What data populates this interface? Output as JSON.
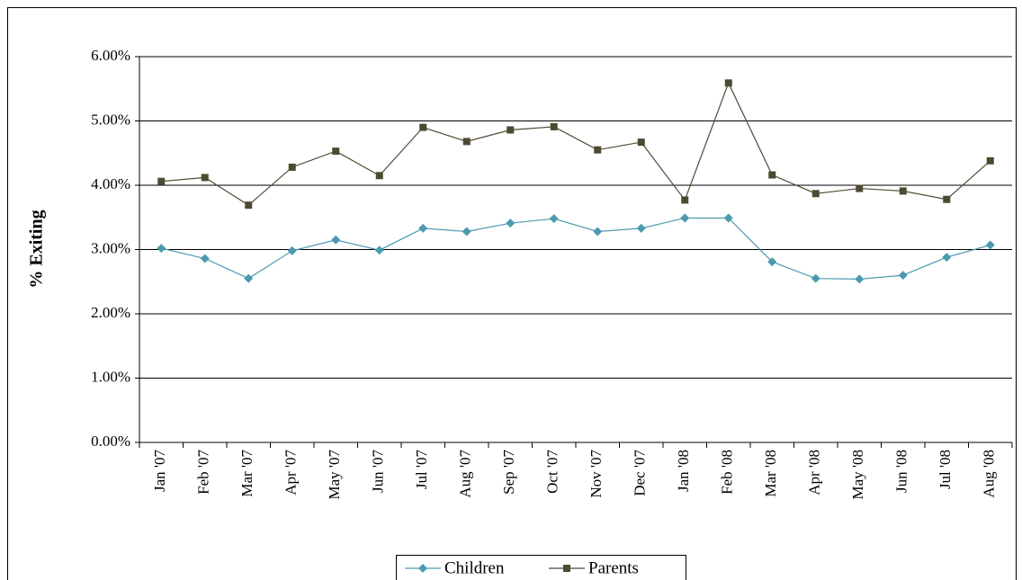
{
  "chart_data": {
    "type": "line",
    "y_label": "% Exiting",
    "categories": [
      "Jan '07",
      "Feb '07",
      "Mar '07",
      "Apr '07",
      "May '07",
      "Jun '07",
      "Jul '07",
      "Aug '07",
      "Sep '07",
      "Oct '07",
      "Nov '07",
      "Dec '07",
      "Jan '08",
      "Feb '08",
      "Mar '08",
      "Apr '08",
      "May '08",
      "Jun '08",
      "Jul '08",
      "Aug '08"
    ],
    "series": [
      {
        "name": "Children",
        "color": "#4b9ab0",
        "marker": "diamond",
        "values": [
          3.02,
          2.86,
          2.55,
          2.98,
          3.15,
          2.99,
          3.33,
          3.28,
          3.41,
          3.48,
          3.28,
          3.33,
          3.49,
          3.49,
          2.81,
          2.55,
          2.54,
          2.6,
          2.88,
          3.07
        ]
      },
      {
        "name": "Parents",
        "color": "#4d4a32",
        "marker": "square",
        "values": [
          4.06,
          4.12,
          3.69,
          4.28,
          4.53,
          4.15,
          4.9,
          4.68,
          4.86,
          4.91,
          4.55,
          4.67,
          3.77,
          5.59,
          4.16,
          3.87,
          3.95,
          3.91,
          3.78,
          4.38
        ]
      }
    ],
    "ylim": [
      0,
      6
    ],
    "yticks": [
      {
        "value": 0,
        "label": "0.00%"
      },
      {
        "value": 1,
        "label": "1.00%"
      },
      {
        "value": 2,
        "label": "2.00%"
      },
      {
        "value": 3,
        "label": "3.00%"
      },
      {
        "value": 4,
        "label": "4.00%"
      },
      {
        "value": 5,
        "label": "5.00%"
      },
      {
        "value": 6,
        "label": "6.00%"
      }
    ],
    "grid": true,
    "legend": "bottom"
  }
}
